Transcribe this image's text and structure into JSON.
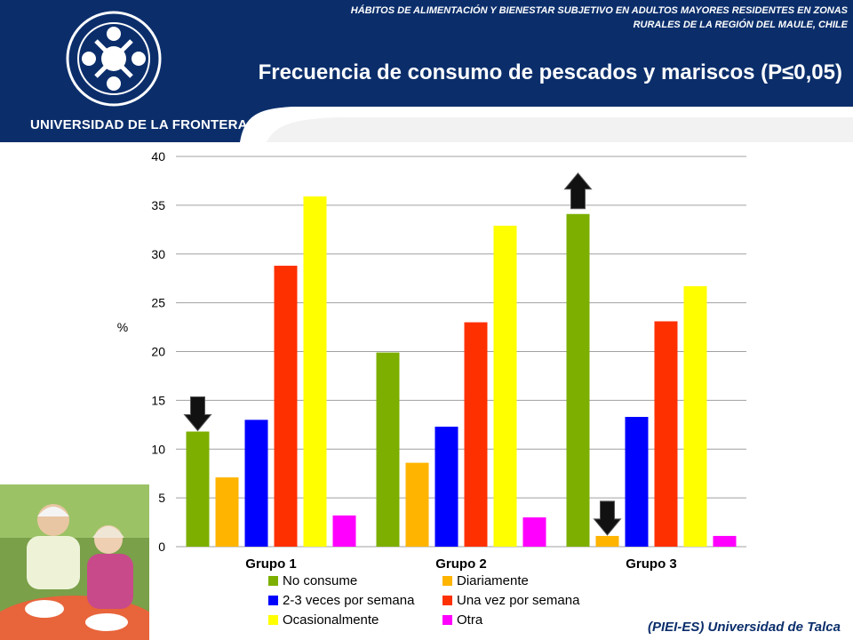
{
  "header": {
    "subtitle_line1": "HÁBITOS DE ALIMENTACIÓN Y BIENESTAR SUBJETIVO EN ADULTOS MAYORES RESIDENTES EN ZONAS",
    "subtitle_line2": "RURALES DE LA REGIÓN DEL MAULE, CHILE",
    "title": "Frecuencia de consumo de pescados y mariscos (P≤0,05)",
    "university": "UNIVERSIDAD DE LA FRONTERA"
  },
  "footer": {
    "text": "(PIEI-ES) Universidad de Talca"
  },
  "colors": {
    "header_bg": "#0b2e6b"
  },
  "chart_data": {
    "type": "bar",
    "ylabel": "%",
    "ylim": [
      0,
      40
    ],
    "yticks": [
      0,
      5,
      10,
      15,
      20,
      25,
      30,
      35,
      40
    ],
    "categories": [
      "Grupo 1",
      "Grupo 2",
      "Grupo 3"
    ],
    "legend_position": "bottom",
    "grid": true,
    "series": [
      {
        "name": "No consume",
        "color": "#7caf00",
        "values": [
          11.8,
          19.9,
          34.1
        ]
      },
      {
        "name": "Diariamente",
        "color": "#ffb400",
        "values": [
          7.1,
          8.6,
          1.1
        ]
      },
      {
        "name": "2-3 veces por semana",
        "color": "#0000ff",
        "values": [
          13.0,
          12.3,
          13.3
        ]
      },
      {
        "name": "Una vez por semana",
        "color": "#ff3000",
        "values": [
          28.8,
          23.0,
          23.1
        ]
      },
      {
        "name": "Ocasionalmente",
        "color": "#ffff00",
        "values": [
          35.9,
          32.9,
          26.7
        ]
      },
      {
        "name": "Otra",
        "color": "#ff00ff",
        "values": [
          3.2,
          3.0,
          1.1
        ]
      }
    ],
    "annotations": [
      {
        "type": "arrow-down",
        "category": "Grupo 1",
        "series": "No consume"
      },
      {
        "type": "arrow-up",
        "category": "Grupo 3",
        "series": "No consume"
      },
      {
        "type": "arrow-down",
        "category": "Grupo 3",
        "series": "Diariamente"
      }
    ]
  }
}
